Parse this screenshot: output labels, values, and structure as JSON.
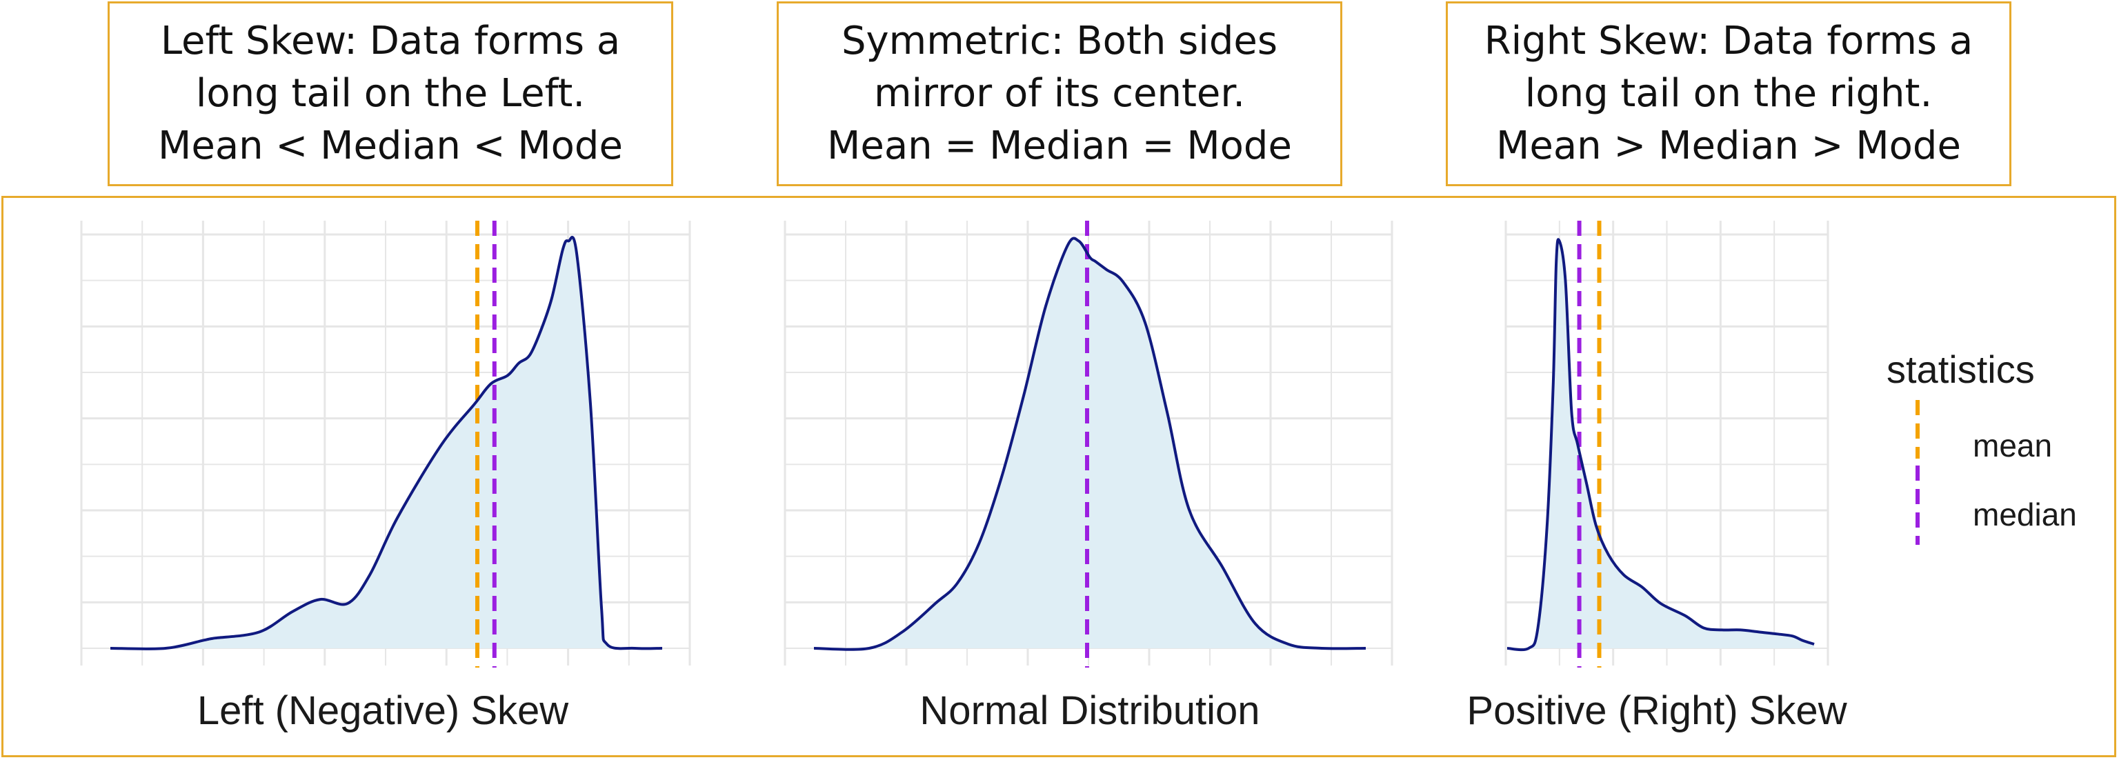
{
  "captions": [
    {
      "lines": [
        "Left Skew: Data forms a",
        "long tail on the Left.",
        "Mean < Median < Mode"
      ]
    },
    {
      "lines": [
        "Symmetric: Both sides",
        "mirror of its center.",
        "Mean = Median = Mode"
      ]
    },
    {
      "lines": [
        "Right Skew: Data forms a",
        "long tail on the right.",
        "Mean > Median > Mode"
      ]
    }
  ],
  "colors": {
    "border": "#e7aa2c",
    "curve": "#101a80",
    "fill": "#dfeef5",
    "grid": "#e6e6e6",
    "mean": "#f4a300",
    "median": "#9b1fe0"
  },
  "legend": {
    "title": "statistics",
    "items": [
      {
        "key": "mean",
        "label": "mean"
      },
      {
        "key": "median",
        "label": "median"
      }
    ]
  },
  "chart_data": [
    {
      "type": "area",
      "xlabel": "Left (Negative) Skew",
      "xlim": [
        0,
        1
      ],
      "ylim": [
        0,
        1.05
      ],
      "x": [
        0,
        0.1,
        0.17,
        0.19,
        0.27,
        0.33,
        0.38,
        0.43,
        0.47,
        0.52,
        0.6,
        0.66,
        0.69,
        0.72,
        0.74,
        0.76,
        0.78,
        0.8,
        0.82,
        0.83,
        0.845,
        0.87,
        0.89,
        0.9,
        0.95,
        1.0
      ],
      "y": [
        0,
        0,
        0.02,
        0.025,
        0.04,
        0.09,
        0.12,
        0.11,
        0.18,
        0.32,
        0.5,
        0.6,
        0.65,
        0.67,
        0.7,
        0.72,
        0.78,
        0.86,
        0.98,
        1.0,
        0.97,
        0.6,
        0.1,
        0.01,
        0,
        0
      ],
      "mean": 0.665,
      "median": 0.696
    },
    {
      "type": "area",
      "xlabel": "Normal Distribution",
      "xlim": [
        0,
        1
      ],
      "ylim": [
        0,
        1.05
      ],
      "x": [
        0,
        0.1,
        0.16,
        0.22,
        0.26,
        0.3,
        0.34,
        0.38,
        0.42,
        0.46,
        0.48,
        0.5,
        0.51,
        0.53,
        0.56,
        0.6,
        0.64,
        0.68,
        0.74,
        0.8,
        0.86,
        0.92,
        1.0
      ],
      "y": [
        0,
        0,
        0.04,
        0.11,
        0.16,
        0.26,
        0.42,
        0.62,
        0.84,
        0.99,
        1.0,
        0.96,
        0.95,
        0.93,
        0.9,
        0.8,
        0.58,
        0.34,
        0.2,
        0.06,
        0.01,
        0,
        0
      ],
      "mean": 0.495,
      "median": 0.495
    },
    {
      "type": "area",
      "xlabel": "Positive (Right) Skew",
      "xlim": [
        0,
        1
      ],
      "ylim": [
        0,
        1.05
      ],
      "x": [
        0,
        0.07,
        0.1,
        0.13,
        0.15,
        0.16,
        0.17,
        0.19,
        0.21,
        0.23,
        0.26,
        0.29,
        0.33,
        0.38,
        0.44,
        0.5,
        0.58,
        0.64,
        0.7,
        0.76,
        0.82,
        0.88,
        0.93,
        0.96,
        1.0
      ],
      "y": [
        0,
        0,
        0.05,
        0.3,
        0.65,
        0.95,
        1.0,
        0.9,
        0.58,
        0.5,
        0.4,
        0.3,
        0.23,
        0.18,
        0.15,
        0.11,
        0.08,
        0.05,
        0.045,
        0.045,
        0.04,
        0.035,
        0.03,
        0.02,
        0.01
      ],
      "mean": 0.3,
      "median": 0.235
    }
  ]
}
